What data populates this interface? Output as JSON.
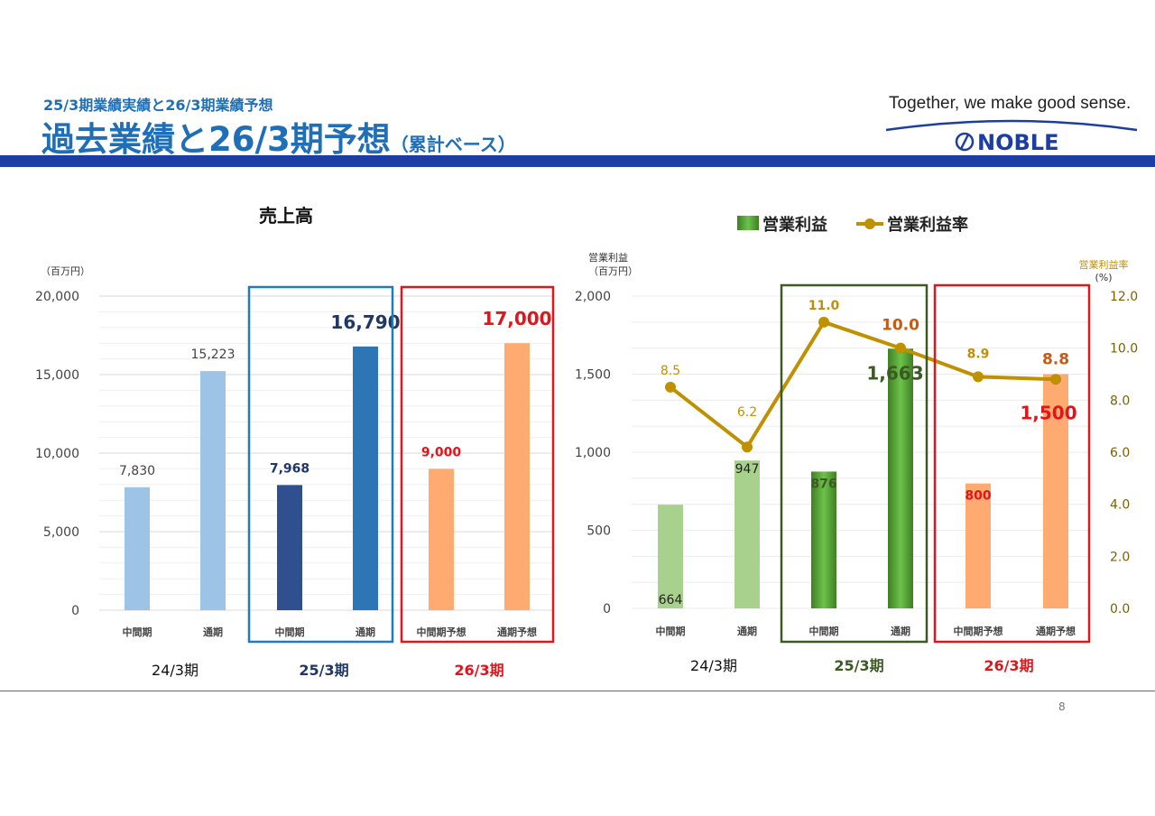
{
  "header": {
    "subtitle": "25/3期業績実績と26/3期業績予想",
    "title": "過去業績と26/3期予想",
    "title_suffix": "（累計ベース）",
    "tagline": "Together, we make good sense.",
    "logo_text": "NOBLE"
  },
  "page_number": "8",
  "colors": {
    "brand_blue": "#1f6fb8",
    "bar_light_blue": "#9dc3e6",
    "bar_navy": "#2f4f8f",
    "bar_blue": "#2e75b6",
    "bar_orange": "#ffaa71",
    "bar_light_green": "#a9d18e",
    "bar_green": "#5fa83a",
    "line_gold": "#bf9000",
    "frame_blue": "#1f7ac0",
    "frame_red": "#e0161d",
    "frame_green": "#3b5a24"
  },
  "chart_data": [
    {
      "type": "bar",
      "title": "売上高",
      "ylabel": "（百万円）",
      "ylim": [
        0,
        20000
      ],
      "yticks": [
        "0",
        "5,000",
        "10,000",
        "15,000",
        "20,000"
      ],
      "categories": [
        "中間期",
        "通期",
        "中間期",
        "通期",
        "中間期予想",
        "通期予想"
      ],
      "groups": [
        "24/3期",
        "25/3期",
        "26/3期"
      ],
      "values": [
        7830,
        15223,
        7968,
        16790,
        9000,
        17000
      ],
      "labels": [
        "7,830",
        "15,223",
        "7,968",
        "16,790",
        "9,000",
        "17,000"
      ]
    },
    {
      "type": "bar+line",
      "ylabel": "営業利益\n（百万円）",
      "y2label": "営業利益率\n(%)",
      "ylim": [
        0,
        2000
      ],
      "y2lim": [
        0,
        12
      ],
      "yticks": [
        "0",
        "500",
        "1,000",
        "1,500",
        "2,000"
      ],
      "y2ticks": [
        "0.0",
        "2.0",
        "4.0",
        "6.0",
        "8.0",
        "10.0",
        "12.0"
      ],
      "categories": [
        "中間期",
        "通期",
        "中間期",
        "通期",
        "中間期予想",
        "通期予想"
      ],
      "groups": [
        "24/3期",
        "25/3期",
        "26/3期"
      ],
      "legend": [
        "営業利益",
        "営業利益率"
      ],
      "series": [
        {
          "name": "営業利益",
          "values": [
            664,
            947,
            876,
            1663,
            800,
            1500
          ],
          "labels": [
            "664",
            "947",
            "876",
            "1,663",
            "800",
            "1,500"
          ]
        },
        {
          "name": "営業利益率",
          "values": [
            8.5,
            6.2,
            11.0,
            10.0,
            8.9,
            8.8
          ],
          "labels": [
            "8.5",
            "6.2",
            "11.0",
            "10.0",
            "8.9",
            "8.8"
          ]
        }
      ]
    }
  ]
}
